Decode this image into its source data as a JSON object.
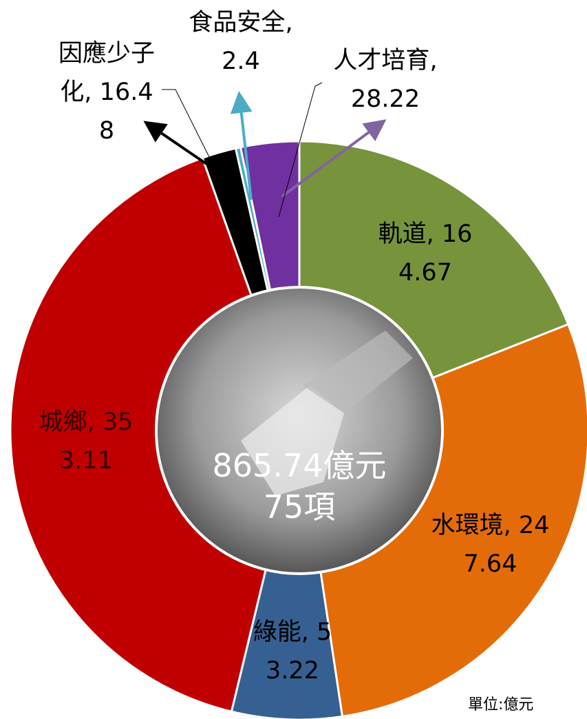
{
  "chart_data": {
    "type": "donut",
    "categories": [
      "軌道",
      "水環境",
      "綠能",
      "城鄉",
      "因應少子化",
      "食品安全",
      "人才培育"
    ],
    "values": [
      164.67,
      247.64,
      53.22,
      353.11,
      16.48,
      2.4,
      28.22
    ],
    "colors": [
      "#77933c",
      "#e36c09",
      "#366092",
      "#c00000",
      "#000000",
      "#4bacc6",
      "#7030a0"
    ],
    "label_separator": ",",
    "center_total": "865.74億元",
    "center_count": "75項",
    "unit_note": "單位:億元"
  }
}
